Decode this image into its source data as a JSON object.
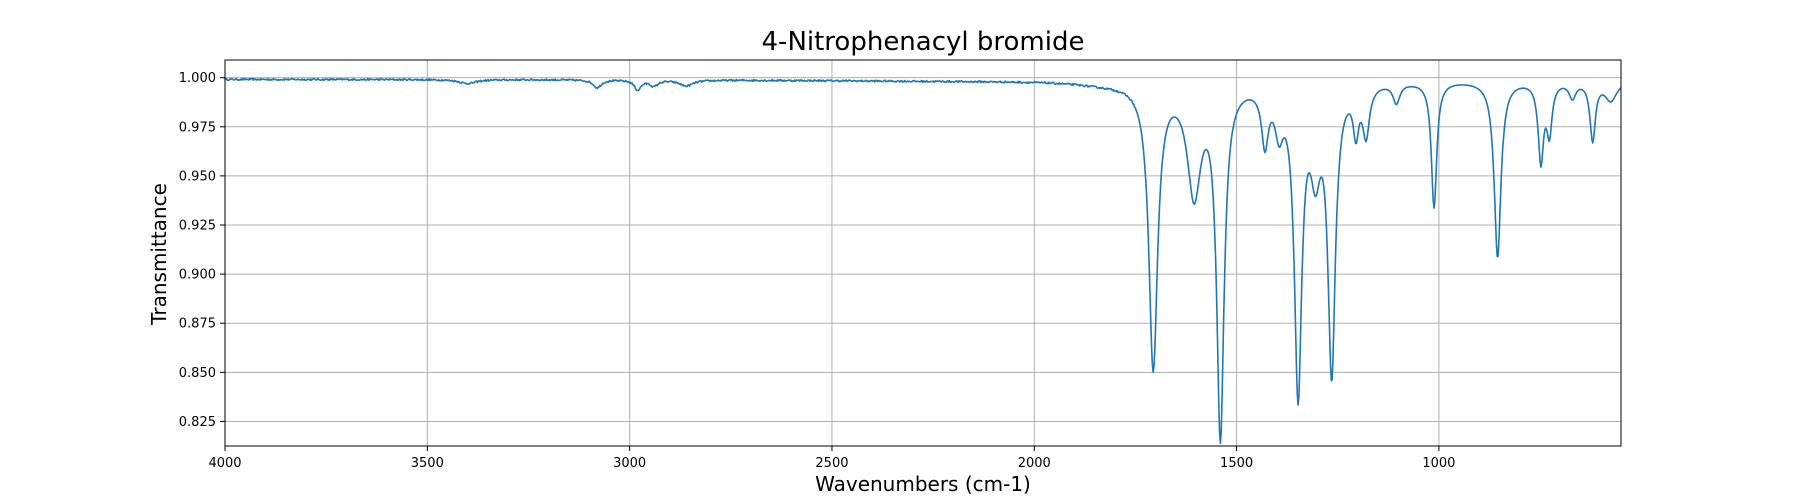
{
  "chart_data": {
    "type": "line",
    "title": "4-Nitrophenacyl bromide",
    "xlabel": "Wavenumbers (cm-1)",
    "ylabel": "Transmittance",
    "xlim": [
      4000,
      550
    ],
    "ylim": [
      0.8125,
      1.009
    ],
    "x_ticks": [
      4000,
      3500,
      3000,
      2500,
      2000,
      1500,
      1000
    ],
    "x_tick_labels": [
      "4000",
      "3500",
      "3000",
      "2500",
      "2000",
      "1500",
      "1000"
    ],
    "y_ticks": [
      1.0,
      0.975,
      0.95,
      0.925,
      0.9,
      0.875,
      0.85,
      0.825
    ],
    "y_tick_labels": [
      "1.000",
      "0.975",
      "0.950",
      "0.925",
      "0.900",
      "0.875",
      "0.850",
      "0.825"
    ],
    "grid": true,
    "series": [
      {
        "color": "#1f77b4",
        "baseline": 0.9992,
        "bands": [
          {
            "center": 3400,
            "width": 25,
            "depth": 0.002
          },
          {
            "center": 3080,
            "width": 12,
            "depth": 0.004
          },
          {
            "center": 2980,
            "width": 10,
            "depth": 0.005
          },
          {
            "center": 2940,
            "width": 12,
            "depth": 0.003
          },
          {
            "center": 2860,
            "width": 20,
            "depth": 0.003
          },
          {
            "center": 2200,
            "width": 500,
            "depth": 0.0008
          },
          {
            "center": 1830,
            "width": 90,
            "depth": 0.0015
          },
          {
            "center": 1706,
            "width": 13,
            "depth": 0.145
          },
          {
            "center": 1605,
            "width": 20,
            "depth": 0.055
          },
          {
            "center": 1540,
            "width": 11,
            "depth": 0.178
          },
          {
            "center": 1430,
            "width": 10,
            "depth": 0.028
          },
          {
            "center": 1395,
            "width": 12,
            "depth": 0.02
          },
          {
            "center": 1348,
            "width": 11,
            "depth": 0.156
          },
          {
            "center": 1305,
            "width": 15,
            "depth": 0.038
          },
          {
            "center": 1265,
            "width": 11,
            "depth": 0.145
          },
          {
            "center": 1205,
            "width": 8,
            "depth": 0.022
          },
          {
            "center": 1180,
            "width": 10,
            "depth": 0.025
          },
          {
            "center": 1105,
            "width": 10,
            "depth": 0.01
          },
          {
            "center": 1012,
            "width": 8,
            "depth": 0.064
          },
          {
            "center": 855,
            "width": 10,
            "depth": 0.09
          },
          {
            "center": 748,
            "width": 8,
            "depth": 0.04
          },
          {
            "center": 727,
            "width": 8,
            "depth": 0.025
          },
          {
            "center": 670,
            "width": 10,
            "depth": 0.008
          },
          {
            "center": 620,
            "width": 8,
            "depth": 0.03
          },
          {
            "center": 575,
            "width": 18,
            "depth": 0.01
          }
        ]
      }
    ]
  }
}
